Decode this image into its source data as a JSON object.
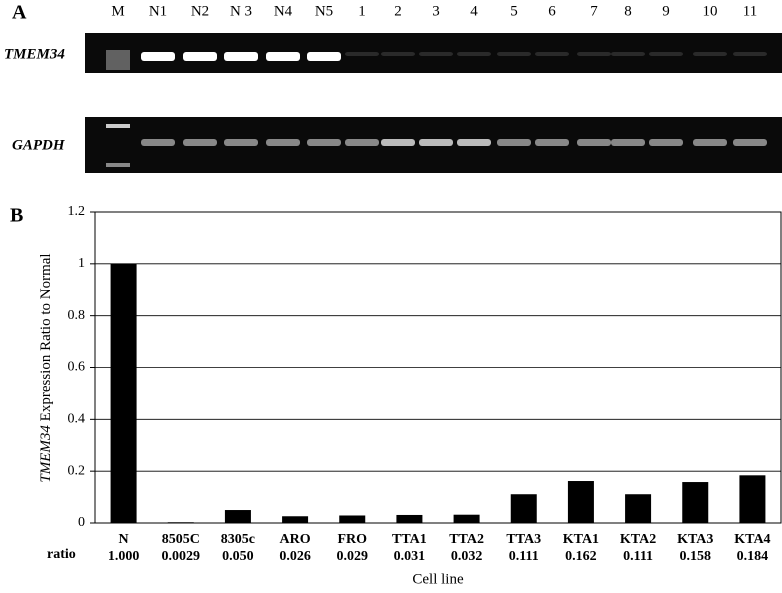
{
  "panel_a": {
    "label": "A",
    "lanes": [
      "M",
      "N1",
      "N2",
      "N 3",
      "N4",
      "N5",
      "1",
      "2",
      "3",
      "4",
      "5",
      "6",
      "7",
      "8",
      "9",
      "10",
      "11"
    ],
    "rows": [
      "TMEM34",
      "GAPDH"
    ]
  },
  "chart_data": {
    "type": "bar",
    "panel_label": "B",
    "y_label_gene": "TMEM34",
    "y_label": "Expression Ratio to Normal",
    "x_label": "Cell line",
    "row_label": "ratio",
    "categories": [
      "N",
      "8505C",
      "8305c",
      "ARO",
      "FRO",
      "TTA1",
      "TTA2",
      "TTA3",
      "KTA1",
      "KTA2",
      "KTA3",
      "KTA4"
    ],
    "values": [
      1.0,
      0.0029,
      0.05,
      0.026,
      0.029,
      0.031,
      0.032,
      0.111,
      0.162,
      0.111,
      0.158,
      0.184
    ],
    "value_labels": [
      "1.000",
      "0.0029",
      "0.050",
      "0.026",
      "0.029",
      "0.031",
      "0.032",
      "0.111",
      "0.162",
      "0.111",
      "0.158",
      "0.184"
    ],
    "color": "#000000",
    "ylim": [
      0,
      1.2
    ],
    "yticks": [
      0,
      0.2,
      0.4,
      0.6,
      0.8,
      1,
      1.2
    ],
    "grid": true
  }
}
